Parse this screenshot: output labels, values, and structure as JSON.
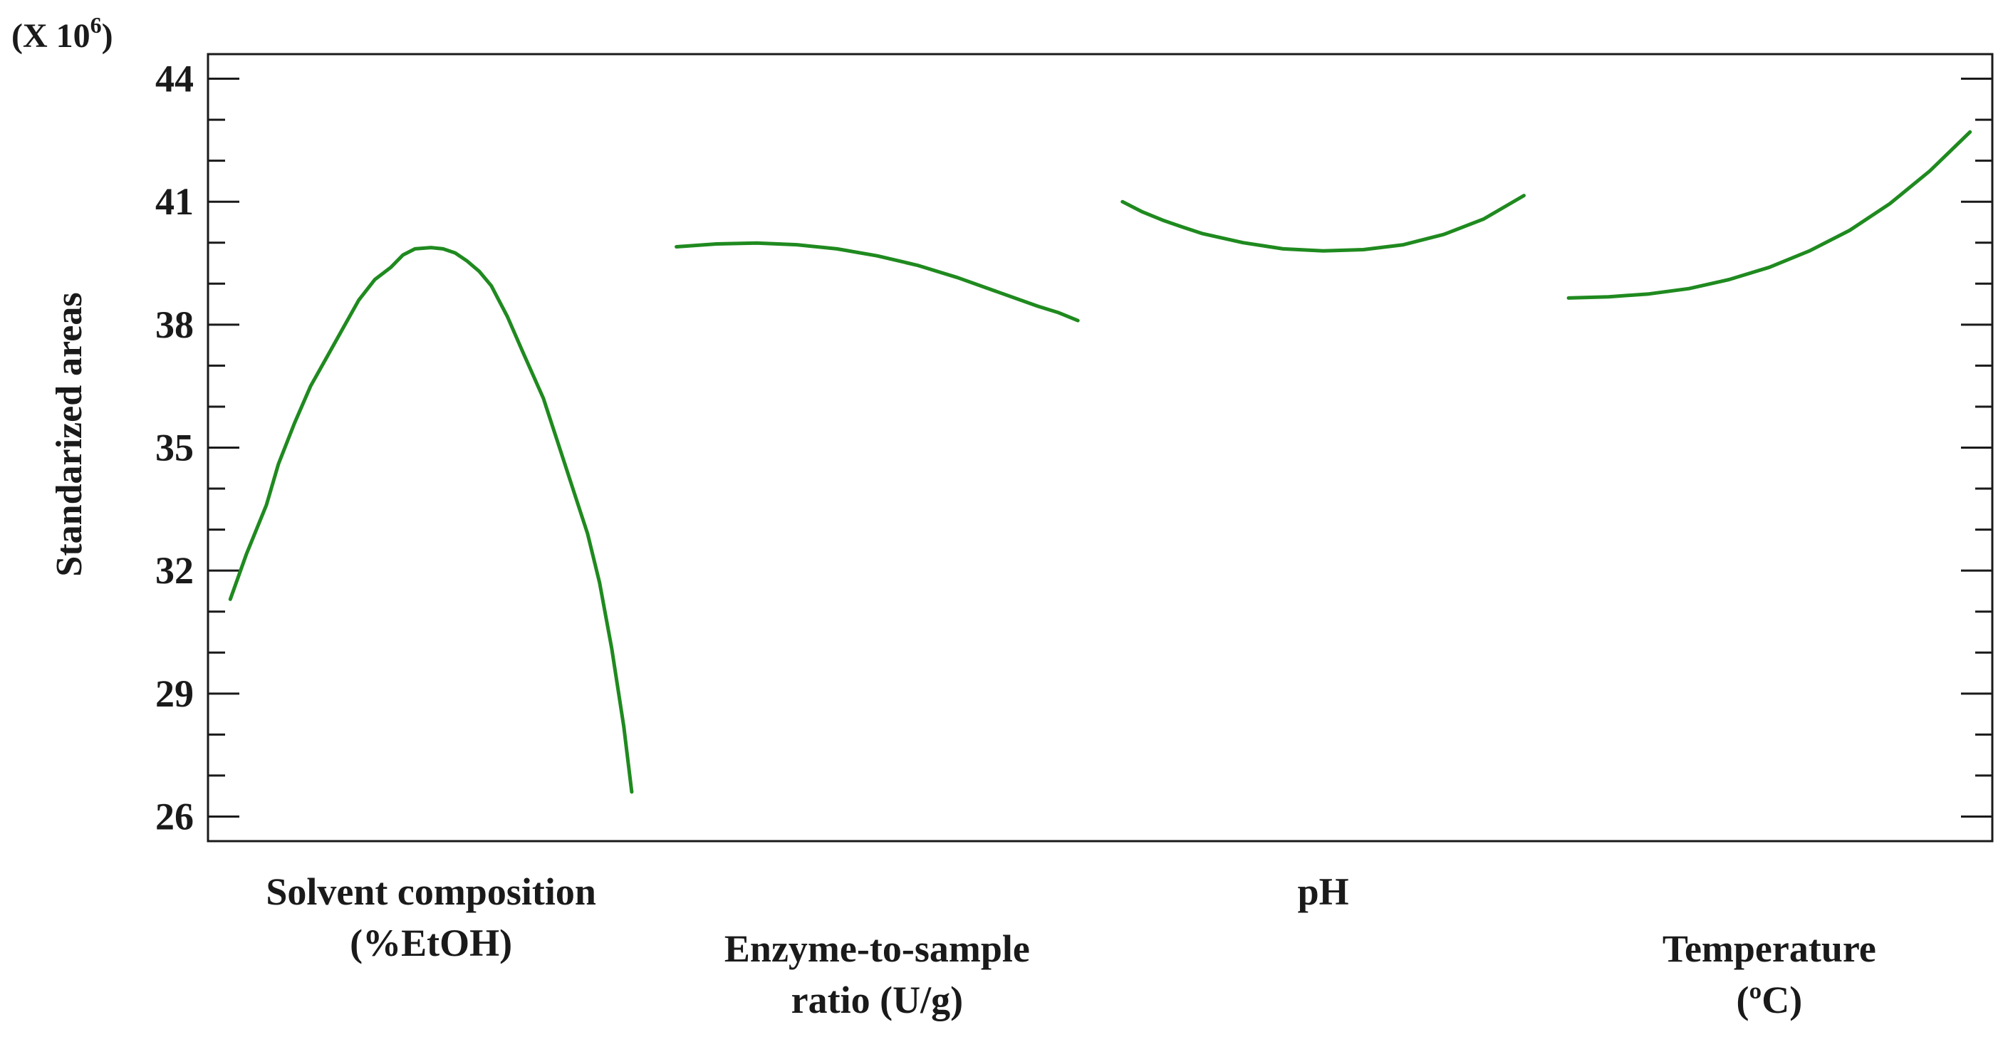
{
  "chart_data": {
    "type": "line",
    "title": "",
    "multiplier": "(X 10",
    "multiplier_exp": "6",
    "multiplier_close": ")",
    "ylabel": "Standarized areas",
    "ylim": [
      25.4,
      44.6
    ],
    "yticks_major": [
      26,
      29,
      32,
      35,
      38,
      41,
      44
    ],
    "yticks_minor": [
      27,
      28,
      30,
      31,
      33,
      34,
      36,
      37,
      39,
      40,
      42,
      43
    ],
    "grid": false,
    "legend": "none",
    "color": "#1f8a1f",
    "factor_span": 0.9,
    "factors": [
      {
        "id": "solvent",
        "label_lines": [
          "Solvent composition",
          "(%EtOH)"
        ],
        "label_row": 1,
        "points": [
          [
            0.0,
            31.3
          ],
          [
            0.04,
            32.4
          ],
          [
            0.09,
            33.6
          ],
          [
            0.12,
            34.6
          ],
          [
            0.16,
            35.6
          ],
          [
            0.2,
            36.5
          ],
          [
            0.24,
            37.2
          ],
          [
            0.28,
            37.9
          ],
          [
            0.32,
            38.6
          ],
          [
            0.36,
            39.1
          ],
          [
            0.4,
            39.4
          ],
          [
            0.43,
            39.7
          ],
          [
            0.46,
            39.85
          ],
          [
            0.5,
            39.88
          ],
          [
            0.53,
            39.85
          ],
          [
            0.56,
            39.75
          ],
          [
            0.59,
            39.55
          ],
          [
            0.62,
            39.3
          ],
          [
            0.65,
            38.95
          ],
          [
            0.69,
            38.2
          ],
          [
            0.73,
            37.3
          ],
          [
            0.78,
            36.2
          ],
          [
            0.82,
            35.0
          ],
          [
            0.86,
            33.8
          ],
          [
            0.89,
            32.9
          ],
          [
            0.92,
            31.7
          ],
          [
            0.95,
            30.1
          ],
          [
            0.98,
            28.2
          ],
          [
            1.0,
            26.6
          ]
        ]
      },
      {
        "id": "enzyme",
        "label_lines": [
          "Enzyme-to-sample",
          "ratio (U/g)"
        ],
        "label_row": 2,
        "points": [
          [
            0.0,
            39.9
          ],
          [
            0.1,
            39.97
          ],
          [
            0.2,
            39.99
          ],
          [
            0.3,
            39.95
          ],
          [
            0.4,
            39.85
          ],
          [
            0.5,
            39.68
          ],
          [
            0.6,
            39.45
          ],
          [
            0.7,
            39.15
          ],
          [
            0.8,
            38.8
          ],
          [
            0.9,
            38.45
          ],
          [
            0.95,
            38.3
          ],
          [
            1.0,
            38.1
          ]
        ]
      },
      {
        "id": "ph",
        "label_lines": [
          "pH"
        ],
        "label_row": 1,
        "points": [
          [
            0.0,
            41.0
          ],
          [
            0.05,
            40.75
          ],
          [
            0.1,
            40.55
          ],
          [
            0.15,
            40.38
          ],
          [
            0.2,
            40.22
          ],
          [
            0.3,
            40.0
          ],
          [
            0.4,
            39.85
          ],
          [
            0.5,
            39.8
          ],
          [
            0.6,
            39.83
          ],
          [
            0.7,
            39.95
          ],
          [
            0.8,
            40.2
          ],
          [
            0.9,
            40.58
          ],
          [
            1.0,
            41.15
          ]
        ]
      },
      {
        "id": "temperature",
        "label_lines": [
          "Temperature",
          "(ºC)"
        ],
        "label_row": 2,
        "points": [
          [
            0.0,
            38.65
          ],
          [
            0.1,
            38.68
          ],
          [
            0.2,
            38.75
          ],
          [
            0.3,
            38.88
          ],
          [
            0.4,
            39.1
          ],
          [
            0.5,
            39.4
          ],
          [
            0.6,
            39.8
          ],
          [
            0.7,
            40.3
          ],
          [
            0.8,
            40.95
          ],
          [
            0.9,
            41.75
          ],
          [
            1.0,
            42.7
          ]
        ]
      }
    ]
  }
}
